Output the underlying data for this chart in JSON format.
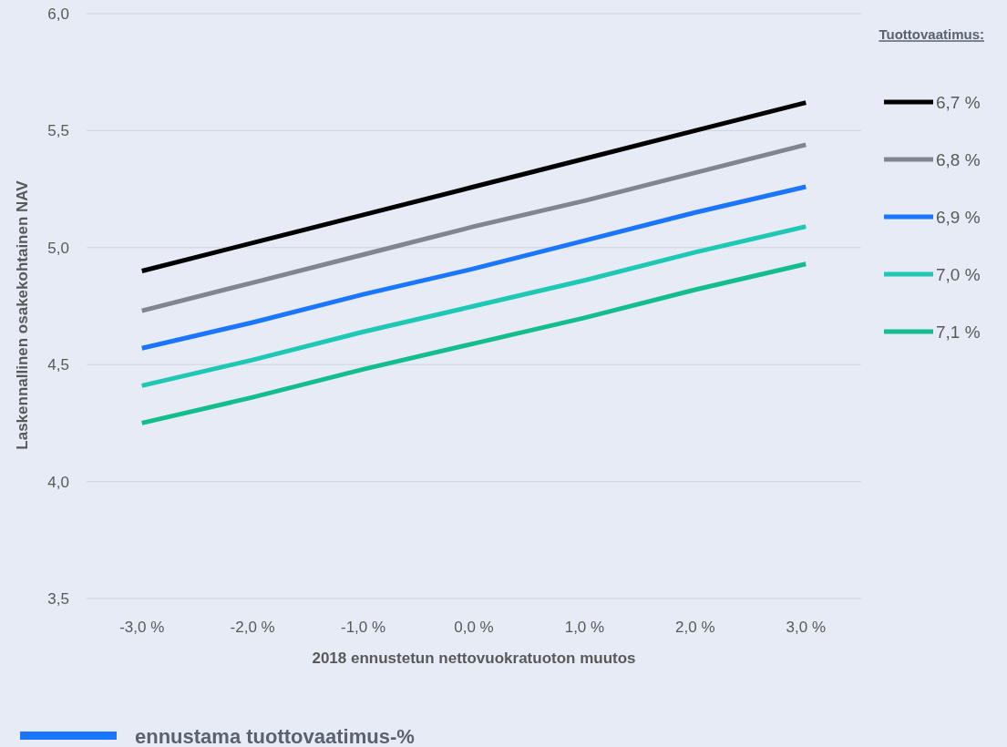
{
  "chart_data": {
    "type": "line",
    "xlabel": "2018 ennustetun nettovuokratuoton muutos",
    "ylabel": "Laskennallinen osakekohtainen NAV",
    "legend_title": "Tuottovaatimus:",
    "categories": [
      "-3,0 %",
      "-2,0 %",
      "-1,0 %",
      "0,0 %",
      "1,0 %",
      "2,0 %",
      "3,0 %"
    ],
    "series": [
      {
        "name": "6,7 %",
        "color": "#000000",
        "values": [
          4.9,
          5.02,
          5.14,
          5.26,
          5.38,
          5.5,
          5.62
        ]
      },
      {
        "name": "6,8 %",
        "color": "#80868e",
        "values": [
          4.73,
          4.85,
          4.97,
          5.09,
          5.2,
          5.32,
          5.44
        ]
      },
      {
        "name": "6,9 %",
        "color": "#1a75ff",
        "values": [
          4.57,
          4.68,
          4.8,
          4.91,
          5.03,
          5.15,
          5.26
        ]
      },
      {
        "name": "7,0 %",
        "color": "#1ec8b4",
        "values": [
          4.41,
          4.52,
          4.64,
          4.75,
          4.86,
          4.98,
          5.09
        ]
      },
      {
        "name": "7,1 %",
        "color": "#14be8c",
        "values": [
          4.25,
          4.36,
          4.48,
          4.59,
          4.7,
          4.82,
          4.93
        ]
      }
    ],
    "ylim": [
      3.5,
      6.0
    ],
    "yticks": [
      {
        "value": 3.5,
        "label": "3,5"
      },
      {
        "value": 4.0,
        "label": "4,0"
      },
      {
        "value": 4.5,
        "label": "4,5"
      },
      {
        "value": 5.0,
        "label": "5,0"
      },
      {
        "value": 5.5,
        "label": "5,5"
      },
      {
        "value": 6.0,
        "label": "6,0"
      }
    ],
    "grid": "y",
    "legend": "right",
    "marker": "none",
    "line_style": "solid",
    "annotations": [
      "ennustama tuottovaatimus-%"
    ]
  }
}
